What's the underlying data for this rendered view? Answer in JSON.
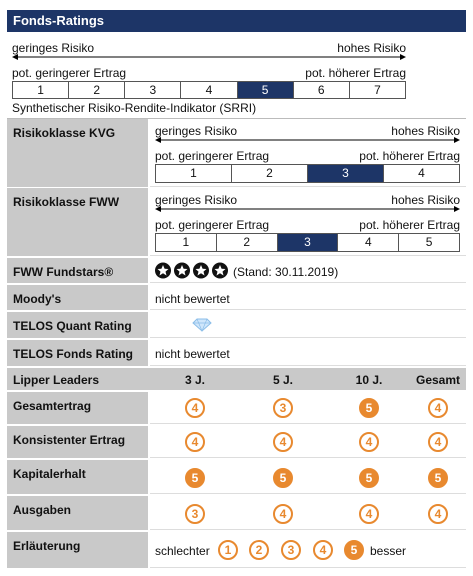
{
  "header": {
    "title": "Fonds-Ratings"
  },
  "srri": {
    "low_risk": "geringes Risiko",
    "high_risk": "hohes Risiko",
    "low_return": "pot. geringerer Ertrag",
    "high_return": "pot. höherer Ertrag",
    "classes": [
      "1",
      "2",
      "3",
      "4",
      "5",
      "6",
      "7"
    ],
    "caption": "Synthetischer Risiko-Rendite-Indikator (SRRI)"
  },
  "risk_kvg": {
    "label": "Risikoklasse KVG",
    "low_risk": "geringes Risiko",
    "high_risk": "hohes Risiko",
    "low_return": "pot. geringerer Ertrag",
    "high_return": "pot. höherer Ertrag",
    "classes": [
      "1",
      "2",
      "3",
      "4"
    ]
  },
  "risk_fww": {
    "label": "Risikoklasse FWW",
    "low_risk": "geringes Risiko",
    "high_risk": "hohes Risiko",
    "low_return": "pot. geringerer Ertrag",
    "high_return": "pot. höherer Ertrag",
    "classes": [
      "1",
      "2",
      "3",
      "4",
      "5"
    ]
  },
  "fundstars": {
    "label": "FWW Fundstars®",
    "stand": "(Stand: 30.11.2019)"
  },
  "moodys": {
    "label": "Moody's",
    "value": "nicht bewertet"
  },
  "telos_quant": {
    "label": "TELOS Quant Rating"
  },
  "telos_fonds": {
    "label": "TELOS Fonds Rating",
    "value": "nicht bewertet"
  },
  "lipper": {
    "header": [
      "Lipper Leaders",
      "3 J.",
      "5 J.",
      "10 J.",
      "Gesamt"
    ],
    "rows": [
      {
        "label": "Gesamtertrag",
        "values": [
          4,
          3,
          5,
          4
        ]
      },
      {
        "label": "Konsistenter Ertrag",
        "values": [
          4,
          4,
          4,
          4
        ]
      },
      {
        "label": "Kapitalerhalt",
        "values": [
          5,
          5,
          5,
          5
        ]
      },
      {
        "label": "Ausgaben",
        "values": [
          3,
          4,
          4,
          4
        ]
      }
    ]
  },
  "legend": {
    "label": "Erläuterung",
    "worse": "schlechter",
    "scale": [
      1,
      2,
      3,
      4,
      5
    ],
    "better": "besser"
  }
}
